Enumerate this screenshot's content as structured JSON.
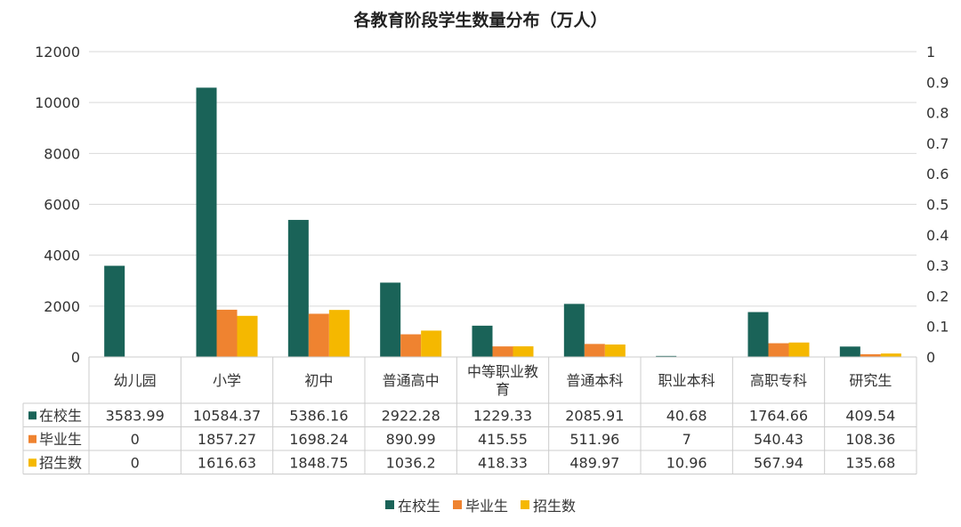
{
  "chart_data": {
    "type": "bar",
    "title": "各教育阶段学生数量分布（万人）",
    "categories": [
      "幼儿园",
      "小学",
      "初中",
      "普通高中",
      "中等职业教育",
      "普通本科",
      "职业本科",
      "高职专科",
      "研究生"
    ],
    "category_lines": [
      [
        "幼儿园"
      ],
      [
        "小学"
      ],
      [
        "初中"
      ],
      [
        "普通高中"
      ],
      [
        "中等职业教",
        "育"
      ],
      [
        "普通本科"
      ],
      [
        "职业本科"
      ],
      [
        "高职专科"
      ],
      [
        "研究生"
      ]
    ],
    "series": [
      {
        "name": "在校生",
        "color": "#1a6358",
        "values": [
          3583.99,
          10584.37,
          5386.16,
          2922.28,
          1229.33,
          2085.91,
          40.68,
          1764.66,
          409.54
        ],
        "labels": [
          "3583.99",
          "10584.37",
          "5386.16",
          "2922.28",
          "1229.33",
          "2085.91",
          "40.68",
          "1764.66",
          "409.54"
        ]
      },
      {
        "name": "毕业生",
        "color": "#ef8330",
        "values": [
          0,
          1857.27,
          1698.24,
          890.99,
          415.55,
          511.96,
          7,
          540.43,
          108.36
        ],
        "labels": [
          "0",
          "1857.27",
          "1698.24",
          "890.99",
          "415.55",
          "511.96",
          "7",
          "540.43",
          "108.36"
        ]
      },
      {
        "name": "招生数",
        "color": "#f5b800",
        "values": [
          0,
          1616.63,
          1848.75,
          1036.2,
          418.33,
          489.97,
          10.96,
          567.94,
          135.68
        ],
        "labels": [
          "0",
          "1616.63",
          "1848.75",
          "1036.2",
          "418.33",
          "489.97",
          "10.96",
          "567.94",
          "135.68"
        ]
      }
    ],
    "y_left": {
      "min": 0,
      "max": 12000,
      "ticks": [
        "0",
        "2000",
        "4000",
        "6000",
        "8000",
        "10000",
        "12000"
      ]
    },
    "y_right": {
      "min": 0,
      "max": 1,
      "ticks": [
        "0",
        "0.1",
        "0.2",
        "0.3",
        "0.4",
        "0.5",
        "0.6",
        "0.7",
        "0.8",
        "0.9",
        "1"
      ]
    },
    "grid": true,
    "data_table": true,
    "legend_position": "bottom"
  }
}
